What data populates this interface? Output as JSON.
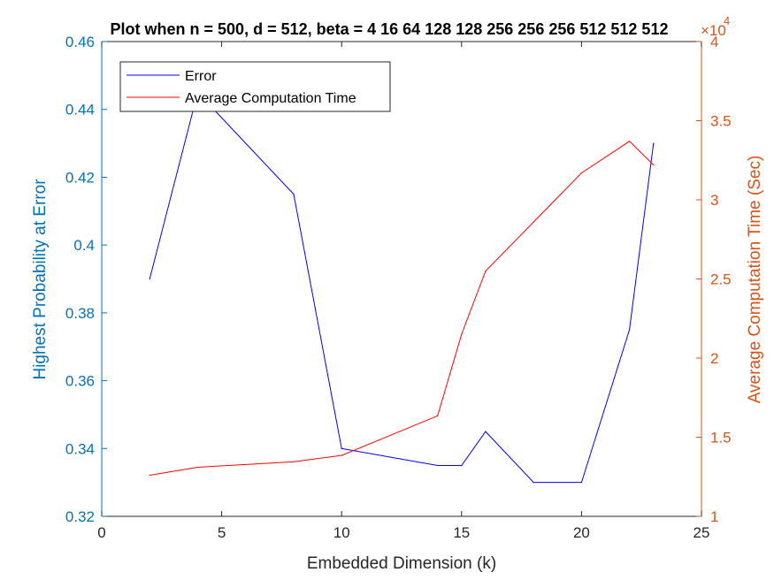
{
  "chart_data": {
    "type": "line",
    "title": "Plot when n = 500, d = 512, beta = 4   16   64  128  128  256  256  256  512  512  512",
    "xlabel": "Embedded Dimension (k)",
    "ylabel_left": "Highest Probability at Error",
    "ylabel_right": "Average Computation Time (Sec)",
    "right_axis_exponent_base": "×10",
    "right_axis_exponent": "4",
    "xlim": [
      0,
      25
    ],
    "ylim_left": [
      0.32,
      0.46
    ],
    "ylim_right": [
      1,
      4
    ],
    "x_ticks": [
      0,
      5,
      10,
      15,
      20,
      25
    ],
    "x_tick_labels": [
      "0",
      "5",
      "10",
      "15",
      "20",
      "25"
    ],
    "y_left_ticks": [
      0.32,
      0.34,
      0.36,
      0.38,
      0.4,
      0.42,
      0.44,
      0.46
    ],
    "y_left_tick_labels": [
      "0.32",
      "0.34",
      "0.36",
      "0.38",
      "0.4",
      "0.42",
      "0.44",
      "0.46"
    ],
    "y_right_ticks": [
      1,
      1.5,
      2,
      2.5,
      3,
      3.5,
      4
    ],
    "y_right_tick_labels": [
      "1",
      "1.5",
      "2",
      "2.5",
      "3",
      "3.5",
      "4"
    ],
    "legend_position": "top-left",
    "series": [
      {
        "name": "Error",
        "axis": "left",
        "color": "#0000FF",
        "x": [
          2,
          4,
          8,
          10,
          14,
          15,
          16,
          18,
          20,
          22,
          23
        ],
        "values": [
          0.39,
          0.445,
          0.415,
          0.34,
          0.335,
          0.335,
          0.345,
          0.33,
          0.33,
          0.375,
          0.43
        ]
      },
      {
        "name": "Average Computation Time",
        "axis": "right",
        "color": "#FF0000",
        "x": [
          2,
          4,
          8,
          10,
          14,
          15,
          16,
          18,
          20,
          22,
          23
        ],
        "values": [
          1.26,
          1.31,
          1.345,
          1.385,
          1.635,
          2.15,
          2.55,
          2.86,
          3.17,
          3.37,
          3.22
        ]
      }
    ]
  },
  "colors": {
    "left_axis": "#0072BD",
    "right_axis": "#D95319",
    "x_axis": "#262626"
  }
}
